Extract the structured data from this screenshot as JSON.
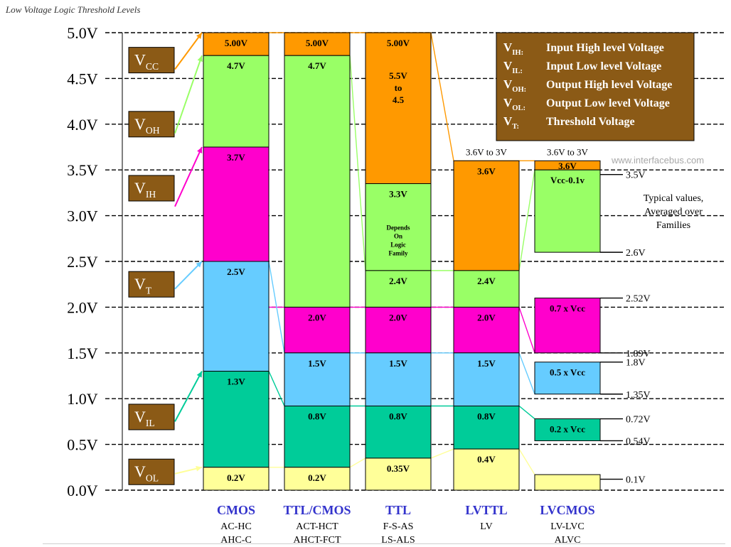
{
  "title": "Low Voltage Logic Threshold Levels",
  "watermark": "www.interfacebus.com",
  "note_lines": [
    "Typical values,",
    "Averaged over",
    "Families"
  ],
  "colors": {
    "vcc": "#ff9900",
    "voh": "#99ff66",
    "vih": "#ff00cc",
    "vt": "#66ccff",
    "vil": "#00cc99",
    "vol": "#ffff99",
    "label_box": "#8b5a16",
    "family_text": "#3333cc",
    "grid": "#000000"
  },
  "axis": {
    "ticks": [
      {
        "value": 0.0,
        "label": "0.0V"
      },
      {
        "value": 0.5,
        "label": "0.5V"
      },
      {
        "value": 1.0,
        "label": "1.0V"
      },
      {
        "value": 1.5,
        "label": "1.5V"
      },
      {
        "value": 2.0,
        "label": "2.0V"
      },
      {
        "value": 2.5,
        "label": "2.5V"
      },
      {
        "value": 3.0,
        "label": "3.0V"
      },
      {
        "value": 3.5,
        "label": "3.5V"
      },
      {
        "value": 4.0,
        "label": "4.0V"
      },
      {
        "value": 4.5,
        "label": "4.5V"
      },
      {
        "value": 5.0,
        "label": "5.0V"
      }
    ]
  },
  "legend": [
    {
      "sym": "V",
      "sub": "IH",
      "desc": "Input High level Voltage"
    },
    {
      "sym": "V",
      "sub": "IL",
      "desc": "Input Low level Voltage"
    },
    {
      "sym": "V",
      "sub": "OH",
      "desc": "Output High level Voltage"
    },
    {
      "sym": "V",
      "sub": "OL",
      "desc": "Output Low level Voltage"
    },
    {
      "sym": "V",
      "sub": "T",
      "desc": "Threshold Voltage"
    }
  ],
  "side_labels": [
    {
      "sym": "V",
      "sub": "CC",
      "color": "vcc",
      "value": 4.7
    },
    {
      "sym": "V",
      "sub": "OH",
      "color": "voh",
      "value": 4.0
    },
    {
      "sym": "V",
      "sub": "IH",
      "color": "vih",
      "value": 3.3
    },
    {
      "sym": "V",
      "sub": "T",
      "color": "vt",
      "value": 2.25
    },
    {
      "sym": "V",
      "sub": "IL",
      "color": "vil",
      "value": 0.8
    },
    {
      "sym": "V",
      "sub": "OL",
      "color": "vol",
      "value": 0.2
    }
  ],
  "families": [
    {
      "name": "CMOS",
      "sub": [
        "AC-HC",
        "AHC-C"
      ],
      "top_label": "",
      "segments": [
        {
          "type": "vcc",
          "lo": 4.75,
          "hi": 5.0,
          "labels": [
            "5.00V"
          ]
        },
        {
          "type": "voh",
          "lo": 3.75,
          "hi": 4.75,
          "labels": [
            "4.7V"
          ]
        },
        {
          "type": "vih",
          "lo": 2.5,
          "hi": 3.75,
          "labels": [
            "3.7V"
          ]
        },
        {
          "type": "vt",
          "lo": 1.3,
          "hi": 2.5,
          "labels": [
            "2.5V"
          ]
        },
        {
          "type": "vil",
          "lo": 0.25,
          "hi": 1.3,
          "labels": [
            "1.3V"
          ]
        },
        {
          "type": "vol",
          "lo": 0.0,
          "hi": 0.25,
          "labels": [
            "0.2V"
          ]
        }
      ]
    },
    {
      "name": "TTL/CMOS",
      "sub": [
        "ACT-HCT",
        "AHCT-FCT"
      ],
      "top_label": "",
      "segments": [
        {
          "type": "vcc",
          "lo": 4.75,
          "hi": 5.0,
          "labels": [
            "5.00V"
          ]
        },
        {
          "type": "voh",
          "lo": 2.0,
          "hi": 4.75,
          "labels": [
            "4.7V"
          ]
        },
        {
          "type": "vih",
          "lo": 1.5,
          "hi": 2.0,
          "labels": [
            "2.0V"
          ]
        },
        {
          "type": "vt",
          "lo": 0.92,
          "hi": 1.5,
          "labels": [
            "1.5V"
          ]
        },
        {
          "type": "vil",
          "lo": 0.25,
          "hi": 0.92,
          "labels": [
            "0.8V"
          ]
        },
        {
          "type": "vol",
          "lo": 0.0,
          "hi": 0.25,
          "labels": [
            "0.2V"
          ]
        }
      ]
    },
    {
      "name": "TTL",
      "sub": [
        "F-S-AS",
        "LS-ALS"
      ],
      "top_label": "",
      "segments": [
        {
          "type": "vcc",
          "lo": 3.35,
          "hi": 5.0,
          "labels": [
            "5.00V",
            "5.5V",
            "to",
            "4.5"
          ]
        },
        {
          "type": "voh",
          "lo": 2.4,
          "hi": 3.35,
          "labels": [
            "3.3V",
            "Depends",
            "On",
            "Logic",
            "Family"
          ]
        },
        {
          "type": "voh",
          "lo": 2.0,
          "hi": 2.4,
          "labels": [
            "2.4V"
          ]
        },
        {
          "type": "vih",
          "lo": 1.5,
          "hi": 2.0,
          "labels": [
            "2.0V"
          ]
        },
        {
          "type": "vt",
          "lo": 0.92,
          "hi": 1.5,
          "labels": [
            "1.5V"
          ]
        },
        {
          "type": "vil",
          "lo": 0.35,
          "hi": 0.92,
          "labels": [
            "0.8V"
          ]
        },
        {
          "type": "vol",
          "lo": 0.0,
          "hi": 0.35,
          "labels": [
            "0.35V"
          ]
        }
      ]
    },
    {
      "name": "LVTTL",
      "sub": [
        "LV"
      ],
      "top_label": "3.6V to 3V",
      "segments": [
        {
          "type": "vcc",
          "lo": 2.4,
          "hi": 3.6,
          "labels": [
            "3.6V"
          ]
        },
        {
          "type": "voh",
          "lo": 2.0,
          "hi": 2.4,
          "labels": [
            "2.4V"
          ]
        },
        {
          "type": "vih",
          "lo": 1.5,
          "hi": 2.0,
          "labels": [
            "2.0V"
          ]
        },
        {
          "type": "vt",
          "lo": 0.92,
          "hi": 1.5,
          "labels": [
            "1.5V"
          ]
        },
        {
          "type": "vil",
          "lo": 0.45,
          "hi": 0.92,
          "labels": [
            "0.8V"
          ]
        },
        {
          "type": "vol",
          "lo": 0.0,
          "hi": 0.45,
          "labels": [
            "0.4V"
          ]
        }
      ]
    },
    {
      "name": "LVCMOS",
      "sub": [
        "LV-LVC",
        "ALVC"
      ],
      "top_label": "3.6V to 3V",
      "segments": [
        {
          "type": "vcc",
          "lo": 3.5,
          "hi": 3.6,
          "labels": [
            "3.6V"
          ]
        },
        {
          "type": "voh",
          "lo": 2.6,
          "hi": 3.5,
          "labels": [
            "Vcc-0.1v"
          ]
        },
        {
          "type": "vih",
          "lo": 1.5,
          "hi": 2.1,
          "labels": [
            "0.7 x Vcc"
          ]
        },
        {
          "type": "vt",
          "lo": 1.05,
          "hi": 1.4,
          "labels": [
            "0.5 x Vcc"
          ]
        },
        {
          "type": "vil",
          "lo": 0.54,
          "hi": 0.78,
          "labels": [
            "0.2 x Vcc"
          ]
        },
        {
          "type": "vol",
          "lo": 0.0,
          "hi": 0.17,
          "labels": []
        }
      ]
    }
  ],
  "right_ticks": [
    {
      "value": 3.45,
      "label": "3.5V"
    },
    {
      "value": 2.6,
      "label": "2.6V"
    },
    {
      "value": 2.1,
      "label": "2.52V"
    },
    {
      "value": 1.5,
      "label": "1.89V"
    },
    {
      "value": 1.4,
      "label": "1.8V"
    },
    {
      "value": 1.05,
      "label": "1.35V"
    },
    {
      "value": 0.78,
      "label": "0.72V"
    },
    {
      "value": 0.54,
      "label": "0.54V"
    },
    {
      "value": 0.12,
      "label": "0.1V"
    }
  ],
  "connectors": [
    {
      "color": "vcc",
      "pts": [
        [
          0,
          5.0
        ],
        [
          1,
          5.0
        ],
        [
          2,
          5.0
        ],
        [
          3,
          3.6
        ],
        [
          4,
          3.6
        ]
      ]
    },
    {
      "color": "voh",
      "pts": [
        [
          1,
          4.75
        ],
        [
          2,
          2.4
        ],
        [
          3,
          2.4
        ],
        [
          4,
          3.5
        ]
      ]
    },
    {
      "color": "vih",
      "pts": [
        [
          0,
          2.0
        ],
        [
          1,
          2.0
        ],
        [
          2,
          2.0
        ],
        [
          3,
          2.0
        ],
        [
          4,
          1.5
        ]
      ]
    },
    {
      "color": "vt",
      "pts": [
        [
          0,
          2.5
        ],
        [
          1,
          1.5
        ],
        [
          2,
          1.5
        ],
        [
          3,
          1.5
        ],
        [
          4,
          1.05
        ]
      ]
    },
    {
      "color": "vil",
      "pts": [
        [
          0,
          1.3
        ],
        [
          1,
          0.92
        ],
        [
          2,
          0.92
        ],
        [
          3,
          0.92
        ],
        [
          4,
          0.78
        ]
      ]
    },
    {
      "color": "vol",
      "pts": [
        [
          0,
          0.25
        ],
        [
          1,
          0.25
        ],
        [
          2,
          0.35
        ],
        [
          3,
          0.45
        ],
        [
          4,
          0.17
        ]
      ]
    }
  ]
}
